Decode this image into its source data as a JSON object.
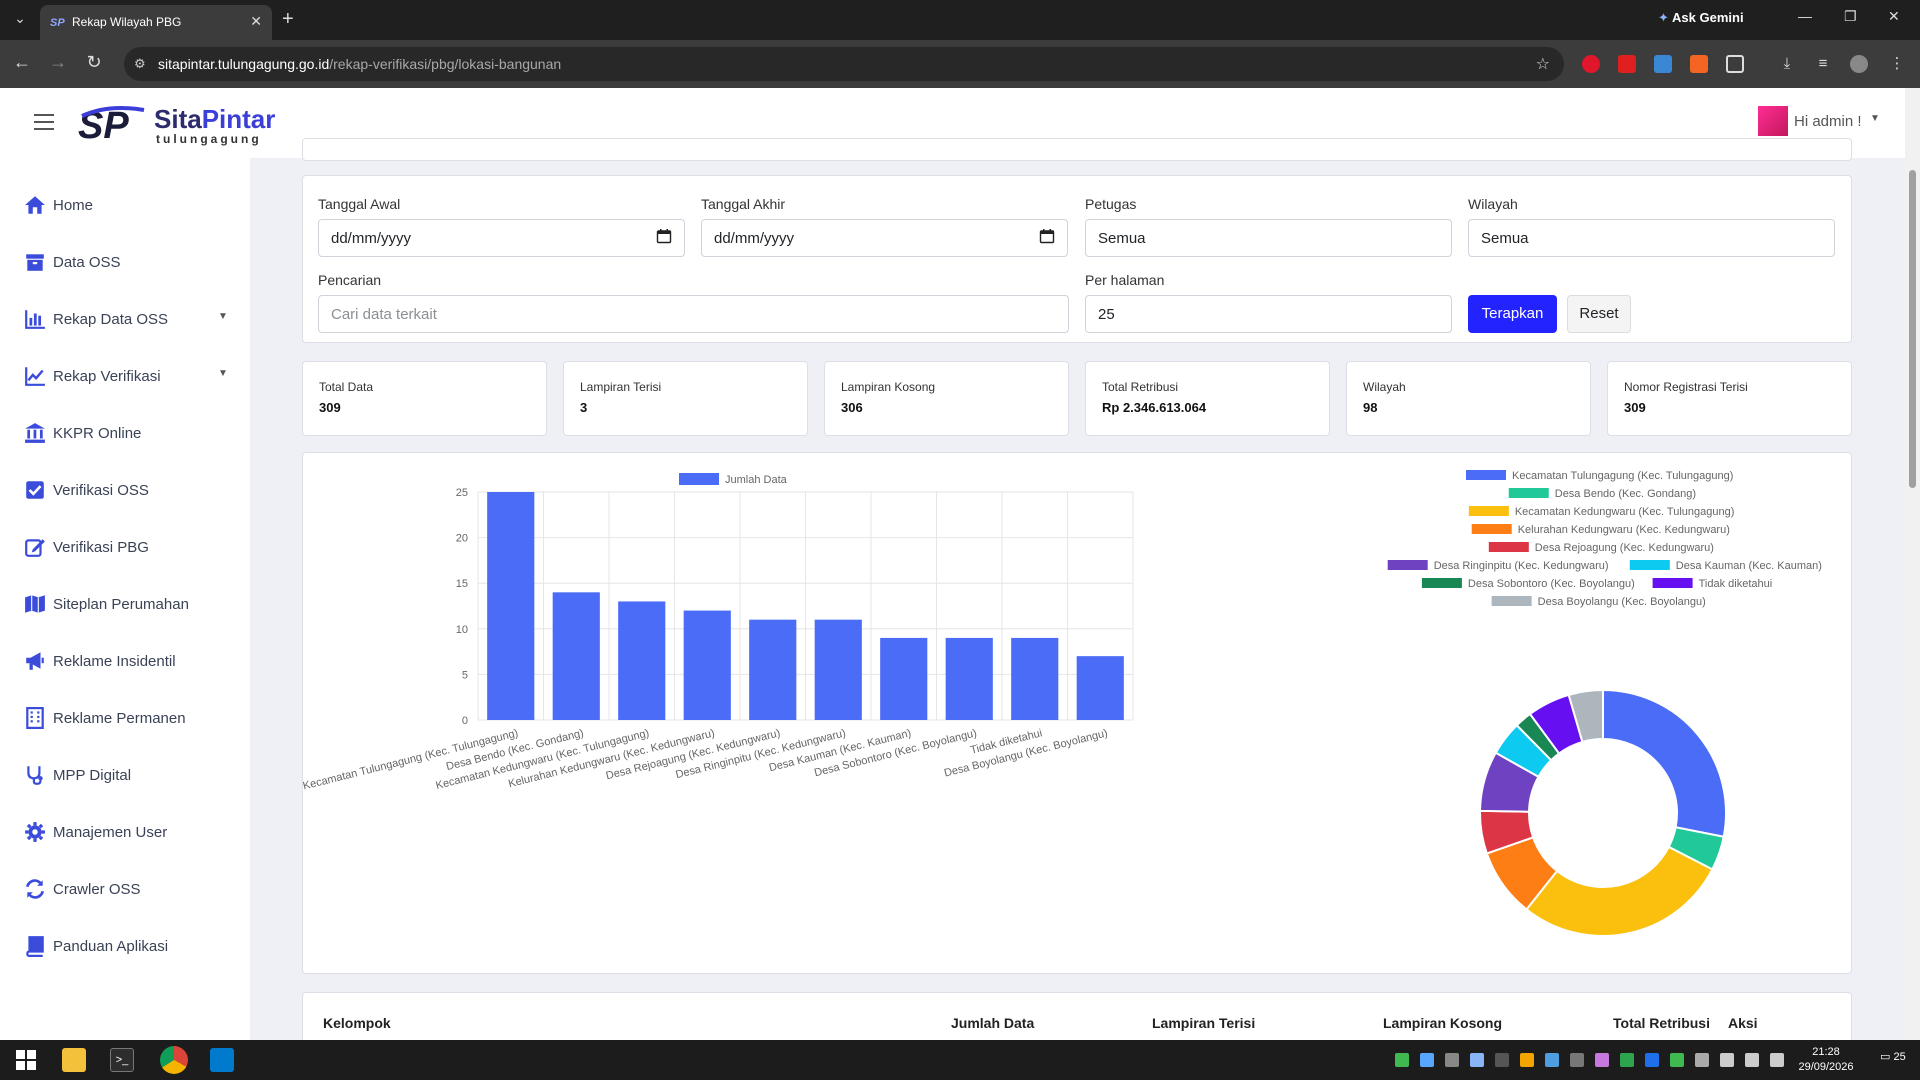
{
  "browser": {
    "tab_title": "Rekap Wilayah PBG",
    "url_host": "sitapintar.tulungagung.go.id",
    "url_path": "/rekap-verifikasi/pbg/lokasi-bangunan",
    "ask_gemini": "Ask Gemini"
  },
  "header": {
    "brand_part1": "Sita",
    "brand_part2": "Pintar",
    "brand_sub": "tulungagung",
    "user_greeting": "Hi admin !"
  },
  "sidebar": {
    "items": [
      {
        "label": "Home",
        "icon": "home-icon"
      },
      {
        "label": "Data OSS",
        "icon": "archive-icon"
      },
      {
        "label": "Rekap Data OSS",
        "icon": "bar-chart-icon"
      },
      {
        "label": "Rekap Verifikasi",
        "icon": "line-chart-icon"
      },
      {
        "label": "KKPR Online",
        "icon": "bank-icon"
      },
      {
        "label": "Verifikasi OSS",
        "icon": "check-square-icon"
      },
      {
        "label": "Verifikasi PBG",
        "icon": "edit-icon"
      },
      {
        "label": "Siteplan Perumahan",
        "icon": "map-icon"
      },
      {
        "label": "Reklame Insidentil",
        "icon": "bullhorn-icon"
      },
      {
        "label": "Reklame Permanen",
        "icon": "building-icon"
      },
      {
        "label": "MPP Digital",
        "icon": "stethoscope-icon"
      },
      {
        "label": "Manajemen User",
        "icon": "gear-icon"
      },
      {
        "label": "Crawler OSS",
        "icon": "sync-icon"
      },
      {
        "label": "Panduan Aplikasi",
        "icon": "book-icon"
      }
    ]
  },
  "filters": {
    "tanggal_awal_label": "Tanggal Awal",
    "tanggal_awal_placeholder": "dd/mm/yyyy",
    "tanggal_akhir_label": "Tanggal Akhir",
    "tanggal_akhir_placeholder": "dd/mm/yyyy",
    "petugas_label": "Petugas",
    "petugas_value": "Semua",
    "wilayah_label": "Wilayah",
    "wilayah_value": "Semua",
    "pencarian_label": "Pencarian",
    "pencarian_placeholder": "Cari data terkait",
    "per_halaman_label": "Per halaman",
    "per_halaman_value": "25",
    "apply_label": "Terapkan",
    "reset_label": "Reset"
  },
  "stats": [
    {
      "label": "Total Data",
      "value": "309"
    },
    {
      "label": "Lampiran Terisi",
      "value": "3"
    },
    {
      "label": "Lampiran Kosong",
      "value": "306"
    },
    {
      "label": "Total Retribusi",
      "value": "Rp 2.346.613.064"
    },
    {
      "label": "Wilayah",
      "value": "98"
    },
    {
      "label": "Nomor Registrasi Terisi",
      "value": "309"
    }
  ],
  "chart_data": [
    {
      "type": "bar",
      "series": [
        {
          "name": "Jumlah Data",
          "values": [
            25,
            14,
            13,
            12,
            11,
            11,
            9,
            9,
            9,
            7
          ]
        }
      ],
      "categories": [
        "Kecamatan Tulungagung (Kec. Tulungagung)",
        "Desa Bendo (Kec. Gondang)",
        "Kecamatan Kedungwaru (Kec. Tulungagung)",
        "Kelurahan Kedungwaru (Kec. Kedungwaru)",
        "Desa Rejoagung (Kec. Kedungwaru)",
        "Desa Ringinpitu (Kec. Kedungwaru)",
        "Desa Kauman (Kec. Kauman)",
        "Desa Sobontoro (Kec. Boyolangu)",
        "Tidak diketahui",
        "Desa Boyolangu (Kec. Boyolangu)"
      ],
      "yticks": [
        0,
        5,
        10,
        15,
        20,
        25
      ],
      "ylim": [
        0,
        25
      ],
      "grid": true,
      "legend": "top",
      "color": "#4a6cf7"
    },
    {
      "type": "pie",
      "legend": "top",
      "labels": [
        "Kecamatan Tulungagung (Kec. Tulungagung)",
        "Desa Bendo (Kec. Gondang)",
        "Kecamatan Kedungwaru (Kec. Tulungagung)",
        "Kelurahan Kedungwaru (Kec. Kedungwaru)",
        "Desa Rejoagung (Kec. Kedungwaru)",
        "Desa Ringinpitu (Kec. Kedungwaru)",
        "Desa Kauman (Kec. Kauman)",
        "Desa Sobontoro (Kec. Boyolangu)",
        "Tidak diketahui",
        "Desa Boyolangu (Kec. Boyolangu)"
      ],
      "values": [
        25,
        4,
        25,
        8,
        5,
        7,
        4,
        2,
        5,
        4
      ],
      "colors": [
        "#4a6cf7",
        "#20c997",
        "#fbbf0e",
        "#fd7e14",
        "#dc3545",
        "#6f42c1",
        "#0dcaf0",
        "#198754",
        "#6610f2",
        "#adb5bd"
      ]
    }
  ],
  "table": {
    "headers": [
      "Kelompok",
      "Jumlah Data",
      "Lampiran Terisi",
      "Lampiran Kosong",
      "Total Retribusi",
      "Aksi"
    ]
  },
  "taskbar": {
    "time": "21:28",
    "date": "29/09/2026",
    "notif_count": "25"
  }
}
